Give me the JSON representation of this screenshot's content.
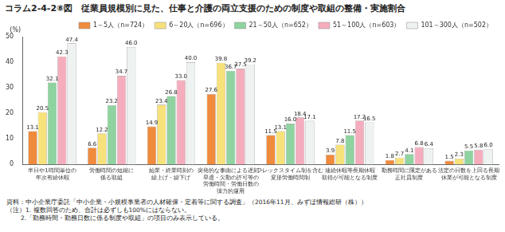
{
  "chart_data": {
    "type": "bar",
    "title": "コラム2-4-2⑧図　従業員規模別に見た、仕事と介護の両立支援のための制度や取組の整備・実施割合",
    "y_label": "(%)",
    "categories": [
      [
        "半日や1時間単位の",
        "年次有給休暇"
      ],
      [
        "労働時間の短縮に",
        "係る取組"
      ],
      [
        "始業・終業時刻の",
        "繰上げ・繰下げ"
      ],
      [
        "突発的な事由による遅刻・",
        "早退・欠勤の許可等の",
        "労働時間・労働日数の",
        "弾力的運用"
      ],
      [
        "フレックスタイム制を含む",
        "変形労働時間制"
      ],
      [
        "連続休暇等長期休暇",
        "取得が可能となる制度"
      ],
      [
        "勤務時間に限定がある",
        "正社員制度"
      ],
      [
        "法定の日数を上回る長期",
        "休業が可能となる制度"
      ]
    ],
    "series": [
      {
        "name": "1～5人（n=724）",
        "color": "#f08a3c",
        "values": [
          13.1,
          6.6,
          14.9,
          27.6,
          11.5,
          3.9,
          1.8,
          1.5
        ],
        "value_labels": [
          "13.1",
          "6.6",
          "14.9",
          "27.6",
          "11.5",
          "3.9",
          "1.8",
          "1.5"
        ]
      },
      {
        "name": "6～20人（n=696）",
        "color": "#f7e17a",
        "values": [
          20.5,
          12.2,
          23.4,
          39.8,
          13.1,
          7.8,
          2.7,
          2.3
        ],
        "value_labels": [
          "20.5",
          "12.2",
          "23.4",
          "39.8",
          "13.1",
          "7.8",
          "2.7",
          "2.3"
        ]
      },
      {
        "name": "21～50人（n=652）",
        "color": "#8fd3a0",
        "values": [
          32.1,
          23.2,
          26.8,
          36.7,
          16.0,
          11.5,
          4.1,
          5.5
        ],
        "value_labels": [
          "32.1",
          "23.2",
          "26.8",
          "36.7",
          "16.0",
          "11.5",
          "4.1",
          "5.5"
        ]
      },
      {
        "name": "51～100人（n=603）",
        "color": "#f5adbd",
        "values": [
          42.3,
          34.7,
          33.0,
          37.5,
          18.4,
          17.2,
          6.8,
          5.8
        ],
        "value_labels": [
          "42.3",
          "34.7",
          "33.0",
          "37.5",
          "18.4",
          "17.2",
          "6.8",
          "5.8"
        ]
      },
      {
        "name": "101～300人（n=502）",
        "color": "#eef2f0",
        "values": [
          47.4,
          46.0,
          40.0,
          39.2,
          17.1,
          16.5,
          6.4,
          6.0
        ],
        "value_labels": [
          "47.4",
          "46.0",
          "40.0",
          "39.2",
          "17.1",
          "16.5",
          "6.4",
          "6.0"
        ]
      }
    ],
    "ylim": [
      0,
      50
    ],
    "yticks": [
      0,
      10,
      20,
      30,
      40,
      50
    ],
    "grid": false,
    "legend": "top",
    "data_labels": true,
    "notes": [
      "資料：中小企業庁委託「中小企業・小規模事業者の人材確保・定着等に関する調査」（2016年11月、みずほ情報総研（株））",
      "（注）1. 複数回答のため、合計は必ずしも100%にはならない。",
      "2.「勤務時間・勤務日数に係る制度や取組」の項目のみ表示している。"
    ]
  }
}
